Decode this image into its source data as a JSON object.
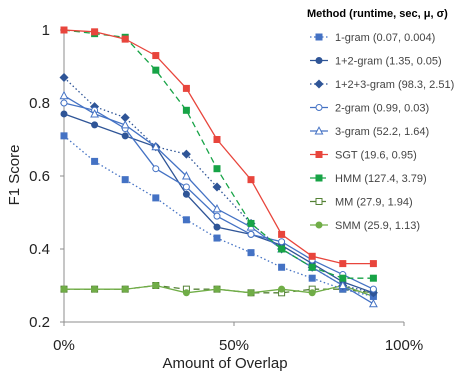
{
  "chart_data": {
    "type": "line",
    "xlabel": "Amount of Overlap",
    "ylabel": "F1 Score",
    "xlim": [
      0,
      1
    ],
    "ylim": [
      0.2,
      1.0
    ],
    "x_ticks": [
      {
        "value": 0,
        "label": "0%"
      },
      {
        "value": 0.5,
        "label": "50%"
      },
      {
        "value": 1,
        "label": "100%"
      }
    ],
    "y_ticks": [
      {
        "value": 0.2,
        "label": "0.2"
      },
      {
        "value": 0.4,
        "label": "0.4"
      },
      {
        "value": 0.6,
        "label": "0.6"
      },
      {
        "value": 0.8,
        "label": "0.8"
      },
      {
        "value": 1.0,
        "label": "1"
      }
    ],
    "grid": false,
    "legend_position": "right",
    "legend_title": "Method (runtime, sec, μ, σ)",
    "x": [
      0,
      0.09,
      0.18,
      0.27,
      0.36,
      0.45,
      0.55,
      0.64,
      0.73,
      0.82,
      0.91
    ],
    "series": [
      {
        "name": "1-gram (0.07, 0.004)",
        "color": "#4472c4",
        "dash": "dot",
        "marker": "square-filled",
        "values": [
          0.71,
          0.64,
          0.59,
          0.54,
          0.48,
          0.43,
          0.39,
          0.35,
          0.32,
          0.29,
          0.27
        ]
      },
      {
        "name": "1+2-gram (1.35, 0.05)",
        "color": "#2f5597",
        "dash": "solid",
        "marker": "circle-filled",
        "values": [
          0.77,
          0.74,
          0.71,
          0.68,
          0.55,
          0.46,
          0.44,
          0.41,
          0.36,
          0.31,
          0.28
        ]
      },
      {
        "name": "1+2+3-gram (98.3, 2.51)",
        "color": "#2f5597",
        "dash": "dot",
        "marker": "diamond-filled",
        "values": [
          0.87,
          0.79,
          0.76,
          0.68,
          0.66,
          0.57,
          0.47,
          0.4,
          0.35,
          0.3,
          0.28
        ]
      },
      {
        "name": "2-gram (0.99, 0.03)",
        "color": "#4472c4",
        "dash": "solid",
        "marker": "circle-open",
        "values": [
          0.8,
          0.78,
          0.73,
          0.62,
          0.57,
          0.49,
          0.44,
          0.42,
          0.37,
          0.33,
          0.29
        ]
      },
      {
        "name": "3-gram (52.2, 1.64)",
        "color": "#4472c4",
        "dash": "solid",
        "marker": "triangle-open",
        "values": [
          0.82,
          0.77,
          0.74,
          0.68,
          0.6,
          0.51,
          0.46,
          0.4,
          0.35,
          0.3,
          0.25
        ]
      },
      {
        "name": "SGT (19.6, 0.95)",
        "color": "#e8453c",
        "dash": "solid",
        "marker": "square-filled",
        "values": [
          1.0,
          0.995,
          0.975,
          0.93,
          0.84,
          0.7,
          0.59,
          0.44,
          0.38,
          0.36,
          0.36
        ]
      },
      {
        "name": "HMM (127.4, 3.79)",
        "color": "#17a346",
        "dash": "dash",
        "marker": "square-filled",
        "values": [
          1.0,
          0.99,
          0.98,
          0.89,
          0.78,
          0.62,
          0.47,
          0.4,
          0.35,
          0.32,
          0.32
        ]
      },
      {
        "name": "MM (27.9, 1.94)",
        "color": "#548235",
        "dash": "dash",
        "marker": "square-open",
        "values": [
          0.29,
          0.29,
          0.29,
          0.3,
          0.29,
          0.29,
          0.28,
          0.28,
          0.29,
          0.29,
          0.28
        ]
      },
      {
        "name": "SMM (25.9, 1.13)",
        "color": "#70ad47",
        "dash": "solid",
        "marker": "circle-filled",
        "values": [
          0.29,
          0.29,
          0.29,
          0.3,
          0.28,
          0.29,
          0.28,
          0.29,
          0.28,
          0.3,
          0.27
        ]
      }
    ]
  }
}
